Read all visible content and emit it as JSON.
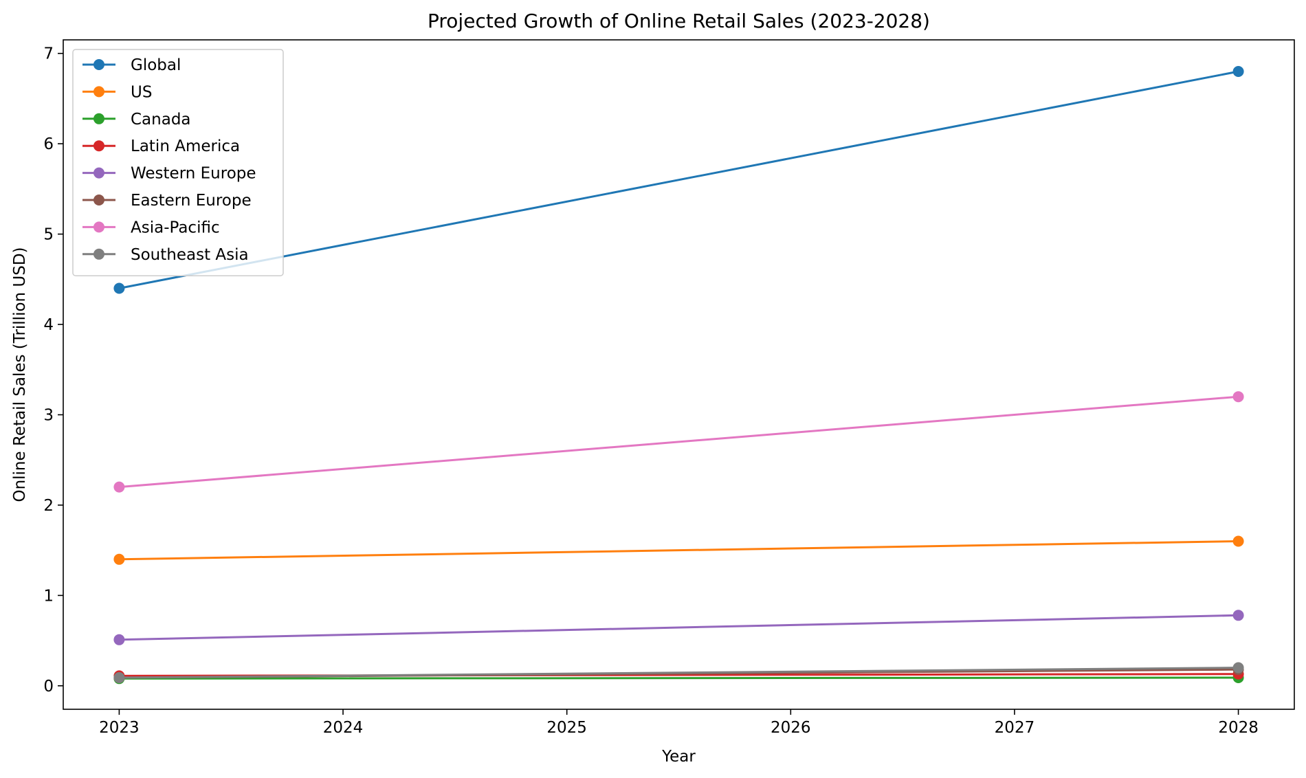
{
  "chart_data": {
    "type": "line",
    "title": "Projected Growth of Online Retail Sales (2023-2028)",
    "xlabel": "Year",
    "ylabel": "Online Retail Sales (Trillion USD)",
    "x": [
      2023,
      2028
    ],
    "xticks": [
      "2023",
      "2024",
      "2025",
      "2026",
      "2027",
      "2028"
    ],
    "yticks": [
      "0",
      "1",
      "2",
      "3",
      "4",
      "5",
      "6",
      "7"
    ],
    "xlim": [
      2022.75,
      2028.25
    ],
    "ylim": [
      -0.26,
      7.15
    ],
    "grid": false,
    "legend_position": "top-left",
    "series": [
      {
        "name": "Global",
        "color": "#1f77b4",
        "values": [
          4.4,
          6.8
        ]
      },
      {
        "name": "US",
        "color": "#ff7f0e",
        "values": [
          1.4,
          1.6
        ]
      },
      {
        "name": "Canada",
        "color": "#2ca02c",
        "values": [
          0.08,
          0.09
        ]
      },
      {
        "name": "Latin America",
        "color": "#d62728",
        "values": [
          0.11,
          0.13
        ]
      },
      {
        "name": "Western Europe",
        "color": "#9467bd",
        "values": [
          0.51,
          0.78
        ]
      },
      {
        "name": "Eastern Europe",
        "color": "#8c564b",
        "values": [
          0.09,
          0.18
        ]
      },
      {
        "name": "Asia-Pacific",
        "color": "#e377c2",
        "values": [
          2.2,
          3.2
        ]
      },
      {
        "name": "Southeast Asia",
        "color": "#7f7f7f",
        "values": [
          0.09,
          0.2
        ]
      }
    ]
  }
}
